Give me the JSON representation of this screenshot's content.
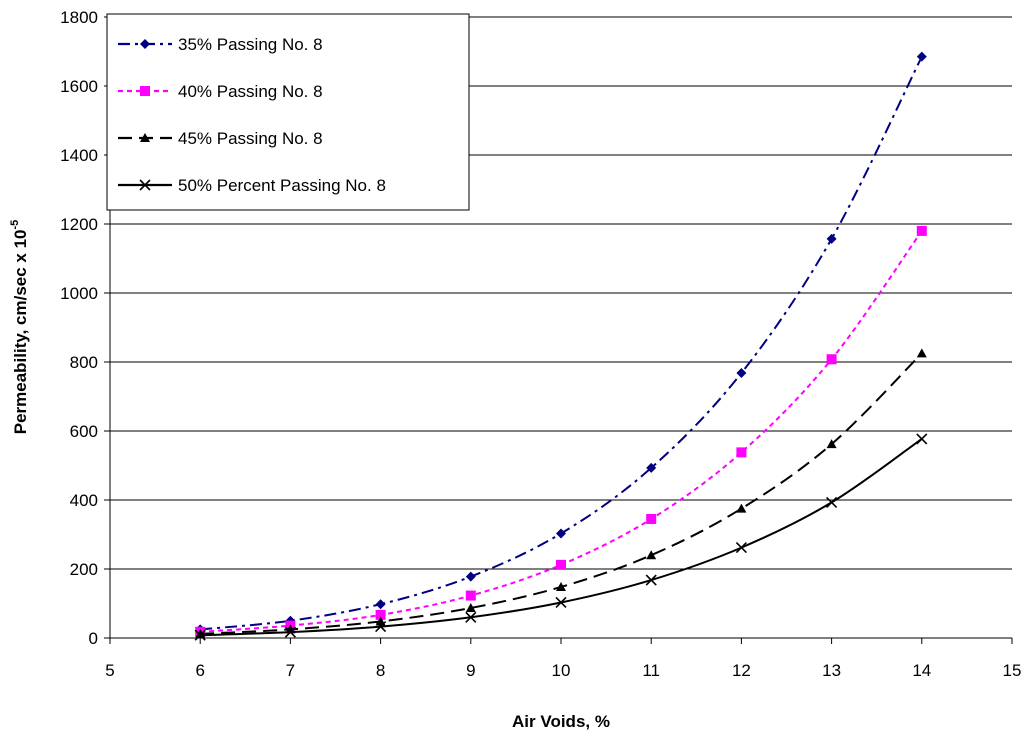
{
  "chart_data": {
    "type": "line",
    "xlabel": "Air Voids, %",
    "ylabel": "Permeability, cm/sec x 10",
    "ylabel_exponent": "-5",
    "xlim": [
      5,
      15
    ],
    "ylim": [
      0,
      1800
    ],
    "x_ticks": [
      "5",
      "6",
      "7",
      "8",
      "9",
      "10",
      "11",
      "12",
      "13",
      "14",
      "15"
    ],
    "y_ticks": [
      "0",
      "200",
      "400",
      "600",
      "800",
      "1000",
      "1200",
      "1400",
      "1600",
      "1800"
    ],
    "grid": "horizontal",
    "legend_position": "top-left",
    "x": [
      6,
      7,
      8,
      9,
      10,
      11,
      12,
      13,
      14
    ],
    "series": [
      {
        "name": "35% Passing No. 8",
        "values": [
          25,
          50,
          98,
          178,
          303,
          493,
          768,
          1157,
          1685
        ],
        "color": "#000080",
        "marker": "diamond",
        "line_style": "dash-dot"
      },
      {
        "name": "40% Passing No. 8",
        "values": [
          18,
          36,
          67,
          123,
          212,
          345,
          538,
          808,
          1180
        ],
        "color": "#ff00ff",
        "marker": "square",
        "line_style": "dotted"
      },
      {
        "name": "45% Passing No. 8",
        "values": [
          12,
          25,
          48,
          87,
          148,
          240,
          375,
          562,
          825
        ],
        "color": "#000000",
        "marker": "triangle",
        "line_style": "long-dash"
      },
      {
        "name": "50% Percent Passing No. 8",
        "values": [
          8,
          17,
          33,
          60,
          103,
          168,
          262,
          393,
          577
        ],
        "color": "#000000",
        "marker": "x",
        "line_style": "solid"
      }
    ]
  }
}
